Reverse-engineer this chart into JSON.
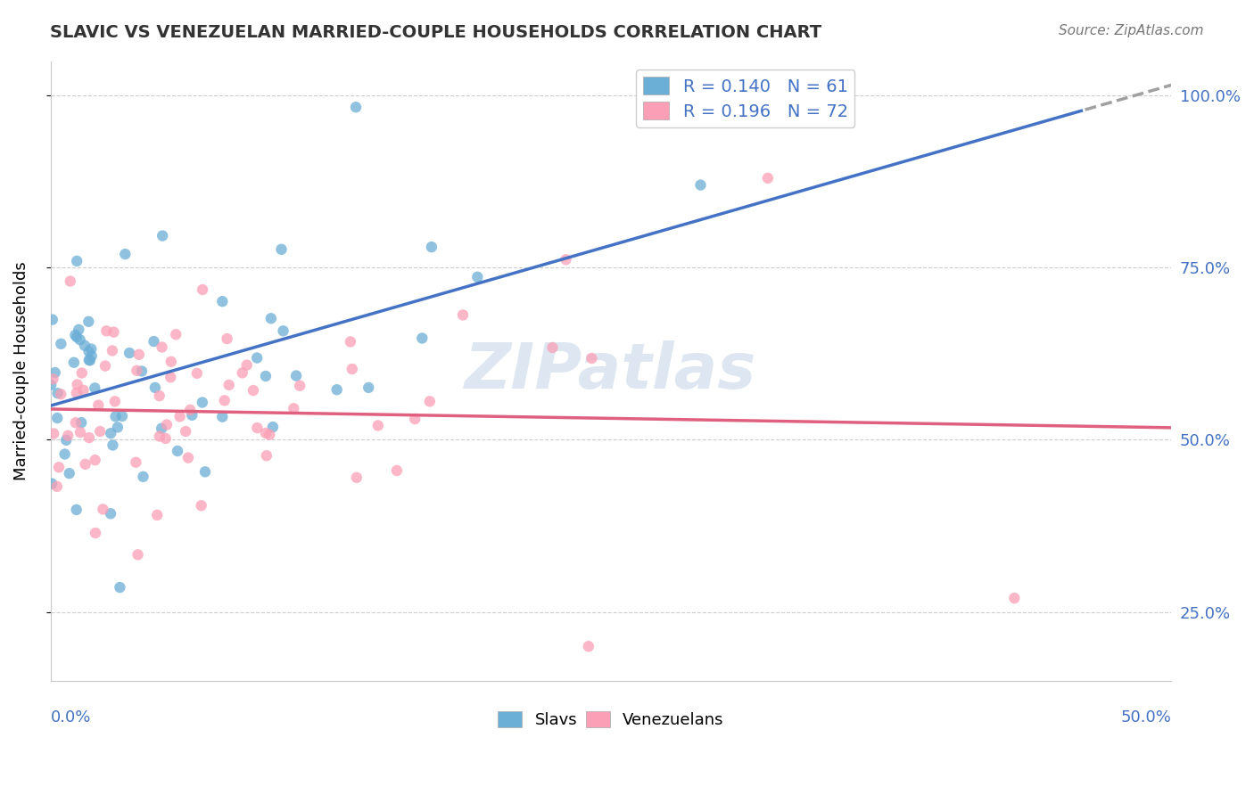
{
  "title": "SLAVIC VS VENEZUELAN MARRIED-COUPLE HOUSEHOLDS CORRELATION CHART",
  "source": "Source: ZipAtlas.com",
  "ylabel": "Married-couple Households",
  "legend1_label": "R = 0.140   N = 61",
  "legend2_label": "R = 0.196   N = 72",
  "slavs_color": "#6baed6",
  "venezuelans_color": "#fa9fb5",
  "trend_slavs_color": "#4472c4",
  "trend_venezuelans_color": "#e06080",
  "trend_slavs_dashed_color": "#a0a0a0",
  "background_color": "#ffffff",
  "grid_color": "#c8c8c8",
  "watermark": "ZIPatlas",
  "watermark_color": "#c8d8e8",
  "xmin": 0.0,
  "xmax": 0.5,
  "ymin": 0.15,
  "ymax": 1.05,
  "ytick_vals": [
    0.25,
    0.5,
    0.75,
    1.0
  ],
  "ytick_labels": [
    "25.0%",
    "50.0%",
    "75.0%",
    "100.0%"
  ]
}
